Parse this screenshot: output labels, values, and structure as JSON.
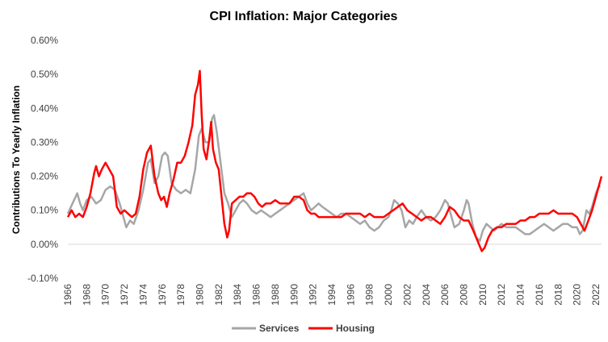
{
  "chart_data": {
    "type": "line",
    "title": "CPI Inflation: Major Categories",
    "xlabel": "",
    "ylabel": "Contributions To Yearly Inflation",
    "xlim": [
      1966,
      2022.6
    ],
    "ylim": [
      -0.1,
      0.6
    ],
    "y_ticks": [
      "0.60%",
      "0.50%",
      "0.40%",
      "0.30%",
      "0.20%",
      "0.10%",
      "0.00%",
      "-0.10%"
    ],
    "y_tick_values": [
      0.6,
      0.5,
      0.4,
      0.3,
      0.2,
      0.1,
      0.0,
      -0.1
    ],
    "x_ticks": [
      "1966",
      "1968",
      "1970",
      "1972",
      "1974",
      "1976",
      "1978",
      "1980",
      "1982",
      "1984",
      "1986",
      "1988",
      "1990",
      "1992",
      "1994",
      "1996",
      "1998",
      "2000",
      "2002",
      "2004",
      "2006",
      "2008",
      "2010",
      "2012",
      "2014",
      "2016",
      "2018",
      "2020",
      "2022"
    ],
    "grid": false,
    "legend_position": "bottom",
    "series": [
      {
        "name": "Services",
        "color": "#a6a6a6",
        "points": [
          [
            1966.0,
            0.09
          ],
          [
            1966.5,
            0.12
          ],
          [
            1967.0,
            0.15
          ],
          [
            1967.3,
            0.12
          ],
          [
            1967.6,
            0.1
          ],
          [
            1968.0,
            0.13
          ],
          [
            1968.5,
            0.14
          ],
          [
            1969.0,
            0.12
          ],
          [
            1969.5,
            0.13
          ],
          [
            1970.0,
            0.16
          ],
          [
            1970.5,
            0.17
          ],
          [
            1971.0,
            0.16
          ],
          [
            1971.5,
            0.12
          ],
          [
            1971.8,
            0.09
          ],
          [
            1972.2,
            0.05
          ],
          [
            1972.6,
            0.07
          ],
          [
            1973.0,
            0.06
          ],
          [
            1973.5,
            0.1
          ],
          [
            1974.0,
            0.16
          ],
          [
            1974.5,
            0.24
          ],
          [
            1974.8,
            0.25
          ],
          [
            1975.2,
            0.18
          ],
          [
            1975.6,
            0.2
          ],
          [
            1976.0,
            0.26
          ],
          [
            1976.3,
            0.27
          ],
          [
            1976.6,
            0.26
          ],
          [
            1977.0,
            0.18
          ],
          [
            1977.5,
            0.16
          ],
          [
            1978.0,
            0.15
          ],
          [
            1978.5,
            0.16
          ],
          [
            1979.0,
            0.15
          ],
          [
            1979.5,
            0.22
          ],
          [
            1979.9,
            0.32
          ],
          [
            1980.2,
            0.34
          ],
          [
            1980.6,
            0.3
          ],
          [
            1981.0,
            0.3
          ],
          [
            1981.3,
            0.37
          ],
          [
            1981.5,
            0.38
          ],
          [
            1981.8,
            0.33
          ],
          [
            1982.2,
            0.24
          ],
          [
            1982.6,
            0.15
          ],
          [
            1983.0,
            0.12
          ],
          [
            1983.4,
            0.08
          ],
          [
            1983.8,
            0.1
          ],
          [
            1984.2,
            0.12
          ],
          [
            1984.6,
            0.13
          ],
          [
            1985.0,
            0.12
          ],
          [
            1985.5,
            0.1
          ],
          [
            1986.0,
            0.09
          ],
          [
            1986.5,
            0.1
          ],
          [
            1987.0,
            0.09
          ],
          [
            1987.5,
            0.08
          ],
          [
            1988.0,
            0.09
          ],
          [
            1988.5,
            0.1
          ],
          [
            1989.0,
            0.11
          ],
          [
            1989.5,
            0.12
          ],
          [
            1990.0,
            0.13
          ],
          [
            1990.5,
            0.14
          ],
          [
            1991.0,
            0.15
          ],
          [
            1991.4,
            0.12
          ],
          [
            1991.8,
            0.1
          ],
          [
            1992.2,
            0.11
          ],
          [
            1992.6,
            0.12
          ],
          [
            1993.0,
            0.11
          ],
          [
            1993.5,
            0.1
          ],
          [
            1994.0,
            0.09
          ],
          [
            1994.5,
            0.08
          ],
          [
            1995.0,
            0.09
          ],
          [
            1995.5,
            0.09
          ],
          [
            1996.0,
            0.08
          ],
          [
            1996.5,
            0.07
          ],
          [
            1997.0,
            0.06
          ],
          [
            1997.5,
            0.07
          ],
          [
            1998.0,
            0.05
          ],
          [
            1998.5,
            0.04
          ],
          [
            1999.0,
            0.05
          ],
          [
            1999.5,
            0.07
          ],
          [
            2000.0,
            0.08
          ],
          [
            2000.3,
            0.1
          ],
          [
            2000.6,
            0.13
          ],
          [
            2001.0,
            0.12
          ],
          [
            2001.4,
            0.1
          ],
          [
            2001.8,
            0.05
          ],
          [
            2002.2,
            0.07
          ],
          [
            2002.6,
            0.06
          ],
          [
            2003.0,
            0.08
          ],
          [
            2003.5,
            0.1
          ],
          [
            2004.0,
            0.08
          ],
          [
            2004.5,
            0.07
          ],
          [
            2005.0,
            0.08
          ],
          [
            2005.5,
            0.1
          ],
          [
            2006.0,
            0.13
          ],
          [
            2006.3,
            0.12
          ],
          [
            2006.6,
            0.09
          ],
          [
            2007.0,
            0.05
          ],
          [
            2007.5,
            0.06
          ],
          [
            2008.0,
            0.1
          ],
          [
            2008.3,
            0.13
          ],
          [
            2008.5,
            0.12
          ],
          [
            2008.9,
            0.06
          ],
          [
            2009.3,
            0.02
          ],
          [
            2009.7,
            0.01
          ],
          [
            2010.0,
            0.04
          ],
          [
            2010.4,
            0.06
          ],
          [
            2010.8,
            0.05
          ],
          [
            2011.2,
            0.04
          ],
          [
            2011.6,
            0.05
          ],
          [
            2012.0,
            0.06
          ],
          [
            2012.5,
            0.05
          ],
          [
            2013.0,
            0.05
          ],
          [
            2013.5,
            0.05
          ],
          [
            2014.0,
            0.04
          ],
          [
            2014.5,
            0.03
          ],
          [
            2015.0,
            0.03
          ],
          [
            2015.5,
            0.04
          ],
          [
            2016.0,
            0.05
          ],
          [
            2016.5,
            0.06
          ],
          [
            2017.0,
            0.05
          ],
          [
            2017.5,
            0.04
          ],
          [
            2018.0,
            0.05
          ],
          [
            2018.5,
            0.06
          ],
          [
            2019.0,
            0.06
          ],
          [
            2019.5,
            0.05
          ],
          [
            2020.0,
            0.05
          ],
          [
            2020.3,
            0.03
          ],
          [
            2020.6,
            0.04
          ],
          [
            2021.0,
            0.1
          ],
          [
            2021.3,
            0.09
          ],
          [
            2021.6,
            0.11
          ],
          [
            2022.0,
            0.15
          ],
          [
            2022.3,
            0.17
          ],
          [
            2022.5,
            0.17
          ]
        ]
      },
      {
        "name": "Housing",
        "color": "#ff0000",
        "points": [
          [
            1966.0,
            0.08
          ],
          [
            1966.4,
            0.1
          ],
          [
            1966.8,
            0.08
          ],
          [
            1967.2,
            0.09
          ],
          [
            1967.6,
            0.08
          ],
          [
            1968.0,
            0.11
          ],
          [
            1968.4,
            0.15
          ],
          [
            1968.8,
            0.21
          ],
          [
            1969.0,
            0.23
          ],
          [
            1969.3,
            0.2
          ],
          [
            1969.6,
            0.22
          ],
          [
            1970.0,
            0.24
          ],
          [
            1970.4,
            0.22
          ],
          [
            1970.8,
            0.2
          ],
          [
            1971.2,
            0.11
          ],
          [
            1971.6,
            0.09
          ],
          [
            1972.0,
            0.1
          ],
          [
            1972.4,
            0.09
          ],
          [
            1972.8,
            0.08
          ],
          [
            1973.2,
            0.09
          ],
          [
            1973.6,
            0.14
          ],
          [
            1974.0,
            0.22
          ],
          [
            1974.4,
            0.27
          ],
          [
            1974.8,
            0.29
          ],
          [
            1975.2,
            0.2
          ],
          [
            1975.6,
            0.15
          ],
          [
            1975.9,
            0.13
          ],
          [
            1976.2,
            0.14
          ],
          [
            1976.5,
            0.11
          ],
          [
            1976.8,
            0.15
          ],
          [
            1977.2,
            0.19
          ],
          [
            1977.6,
            0.24
          ],
          [
            1978.0,
            0.24
          ],
          [
            1978.4,
            0.26
          ],
          [
            1978.8,
            0.3
          ],
          [
            1979.2,
            0.35
          ],
          [
            1979.5,
            0.44
          ],
          [
            1979.8,
            0.47
          ],
          [
            1980.0,
            0.51
          ],
          [
            1980.2,
            0.38
          ],
          [
            1980.4,
            0.28
          ],
          [
            1980.7,
            0.25
          ],
          [
            1981.0,
            0.31
          ],
          [
            1981.2,
            0.36
          ],
          [
            1981.4,
            0.28
          ],
          [
            1981.7,
            0.24
          ],
          [
            1982.0,
            0.22
          ],
          [
            1982.3,
            0.14
          ],
          [
            1982.6,
            0.06
          ],
          [
            1982.9,
            0.02
          ],
          [
            1983.1,
            0.04
          ],
          [
            1983.4,
            0.12
          ],
          [
            1983.8,
            0.13
          ],
          [
            1984.2,
            0.14
          ],
          [
            1984.6,
            0.14
          ],
          [
            1985.0,
            0.15
          ],
          [
            1985.4,
            0.15
          ],
          [
            1985.8,
            0.14
          ],
          [
            1986.2,
            0.12
          ],
          [
            1986.6,
            0.11
          ],
          [
            1987.0,
            0.12
          ],
          [
            1987.5,
            0.12
          ],
          [
            1988.0,
            0.13
          ],
          [
            1988.5,
            0.12
          ],
          [
            1989.0,
            0.12
          ],
          [
            1989.5,
            0.12
          ],
          [
            1990.0,
            0.14
          ],
          [
            1990.5,
            0.14
          ],
          [
            1991.0,
            0.13
          ],
          [
            1991.4,
            0.1
          ],
          [
            1991.8,
            0.09
          ],
          [
            1992.2,
            0.09
          ],
          [
            1992.6,
            0.08
          ],
          [
            1993.0,
            0.08
          ],
          [
            1993.5,
            0.08
          ],
          [
            1994.0,
            0.08
          ],
          [
            1994.5,
            0.08
          ],
          [
            1995.0,
            0.08
          ],
          [
            1995.5,
            0.09
          ],
          [
            1996.0,
            0.09
          ],
          [
            1996.5,
            0.09
          ],
          [
            1997.0,
            0.09
          ],
          [
            1997.5,
            0.08
          ],
          [
            1998.0,
            0.09
          ],
          [
            1998.5,
            0.08
          ],
          [
            1999.0,
            0.08
          ],
          [
            1999.5,
            0.08
          ],
          [
            2000.0,
            0.09
          ],
          [
            2000.5,
            0.1
          ],
          [
            2001.0,
            0.11
          ],
          [
            2001.5,
            0.12
          ],
          [
            2002.0,
            0.1
          ],
          [
            2002.5,
            0.09
          ],
          [
            2003.0,
            0.08
          ],
          [
            2003.5,
            0.07
          ],
          [
            2004.0,
            0.08
          ],
          [
            2004.5,
            0.08
          ],
          [
            2005.0,
            0.07
          ],
          [
            2005.5,
            0.06
          ],
          [
            2006.0,
            0.08
          ],
          [
            2006.5,
            0.11
          ],
          [
            2007.0,
            0.1
          ],
          [
            2007.5,
            0.08
          ],
          [
            2008.0,
            0.07
          ],
          [
            2008.5,
            0.07
          ],
          [
            2009.0,
            0.04
          ],
          [
            2009.3,
            0.02
          ],
          [
            2009.6,
            0.0
          ],
          [
            2009.9,
            -0.02
          ],
          [
            2010.2,
            -0.01
          ],
          [
            2010.6,
            0.02
          ],
          [
            2011.0,
            0.04
          ],
          [
            2011.5,
            0.05
          ],
          [
            2012.0,
            0.05
          ],
          [
            2012.5,
            0.06
          ],
          [
            2013.0,
            0.06
          ],
          [
            2013.5,
            0.06
          ],
          [
            2014.0,
            0.07
          ],
          [
            2014.5,
            0.07
          ],
          [
            2015.0,
            0.08
          ],
          [
            2015.5,
            0.08
          ],
          [
            2016.0,
            0.09
          ],
          [
            2016.5,
            0.09
          ],
          [
            2017.0,
            0.09
          ],
          [
            2017.5,
            0.1
          ],
          [
            2018.0,
            0.09
          ],
          [
            2018.5,
            0.09
          ],
          [
            2019.0,
            0.09
          ],
          [
            2019.5,
            0.09
          ],
          [
            2020.0,
            0.08
          ],
          [
            2020.4,
            0.06
          ],
          [
            2020.8,
            0.04
          ],
          [
            2021.2,
            0.07
          ],
          [
            2021.6,
            0.1
          ],
          [
            2022.0,
            0.14
          ],
          [
            2022.3,
            0.17
          ],
          [
            2022.5,
            0.19
          ],
          [
            2022.6,
            0.2
          ]
        ]
      }
    ]
  }
}
